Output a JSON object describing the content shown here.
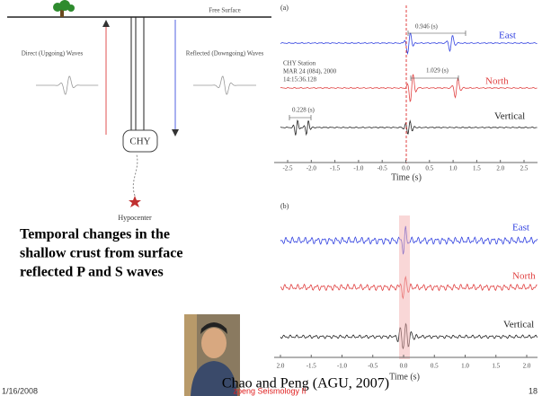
{
  "diagram": {
    "free_surface": "Free Surface",
    "direct_waves": "Direct (Upgoing) Waves",
    "reflected_waves": "Reflected (Downgoing) Waves",
    "station": "CHY",
    "hypocenter": "Hypocenter"
  },
  "panel_a": {
    "label": "(a)",
    "east_delay": "0.946 (s)",
    "east": "East",
    "station_info": [
      "CHY Station",
      "MAR 24 (084), 2000",
      "14:15:36.128"
    ],
    "north_delay": "1.029 (s)",
    "north": "North",
    "vertical_delay": "0.228 (s)",
    "vertical": "Vertical",
    "ticks": [
      "-2.5",
      "-2.0",
      "-1.5",
      "-1.0",
      "-0.5",
      "0.0",
      "0.5",
      "1.0",
      "1.5",
      "2.0",
      "2.5"
    ],
    "xlabel": "Time (s)"
  },
  "panel_b": {
    "label": "(b)",
    "east": "East",
    "north": "North",
    "vertical": "Vertical",
    "ticks": [
      "2.0",
      "-1.5",
      "-1.0",
      "-0.5",
      "0.0",
      "0.5",
      "1.0",
      "1.5",
      "2.0"
    ],
    "xlabel": "Time (s)"
  },
  "body": {
    "lines": [
      "Temporal changes in the",
      "shallow crust from surface",
      "reflected P and S waves"
    ]
  },
  "citation": "Chao and Peng (AGU, 2007)",
  "footer": {
    "date": "1/16/2008",
    "course": "zpeng Seismology II",
    "page": "18"
  }
}
